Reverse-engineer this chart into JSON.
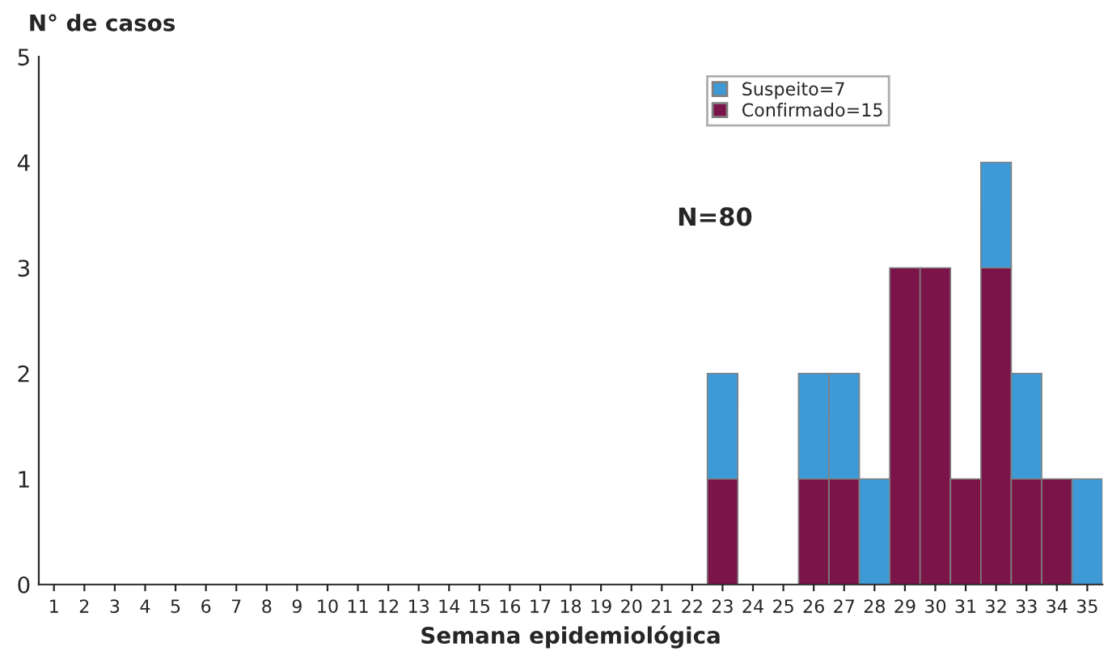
{
  "chart_data": {
    "type": "bar",
    "stacked": true,
    "xlabel": "Semana epidemiológica",
    "ylabel": "N° de casos",
    "categories": [
      "1",
      "2",
      "3",
      "4",
      "5",
      "6",
      "7",
      "8",
      "9",
      "10",
      "11",
      "12",
      "13",
      "14",
      "15",
      "16",
      "17",
      "18",
      "19",
      "20",
      "21",
      "22",
      "23",
      "24",
      "25",
      "26",
      "27",
      "28",
      "29",
      "30",
      "31",
      "32",
      "33",
      "34",
      "35"
    ],
    "series": [
      {
        "name": "Confirmado=15",
        "color": "#7b1449",
        "values": [
          0,
          0,
          0,
          0,
          0,
          0,
          0,
          0,
          0,
          0,
          0,
          0,
          0,
          0,
          0,
          0,
          0,
          0,
          0,
          0,
          0,
          0,
          1,
          0,
          0,
          1,
          1,
          0,
          3,
          3,
          1,
          3,
          1,
          1,
          0
        ]
      },
      {
        "name": "Suspeito=7",
        "color": "#3d9ad6",
        "values": [
          0,
          0,
          0,
          0,
          0,
          0,
          0,
          0,
          0,
          0,
          0,
          0,
          0,
          0,
          0,
          0,
          0,
          0,
          0,
          0,
          0,
          0,
          1,
          0,
          0,
          1,
          1,
          1,
          0,
          0,
          0,
          1,
          1,
          0,
          1
        ]
      }
    ],
    "ylim": [
      0,
      5
    ],
    "yticks": [
      0,
      1,
      2,
      3,
      4,
      5
    ],
    "grid": false,
    "legend": "top right",
    "annotations": [
      "N=80"
    ]
  }
}
